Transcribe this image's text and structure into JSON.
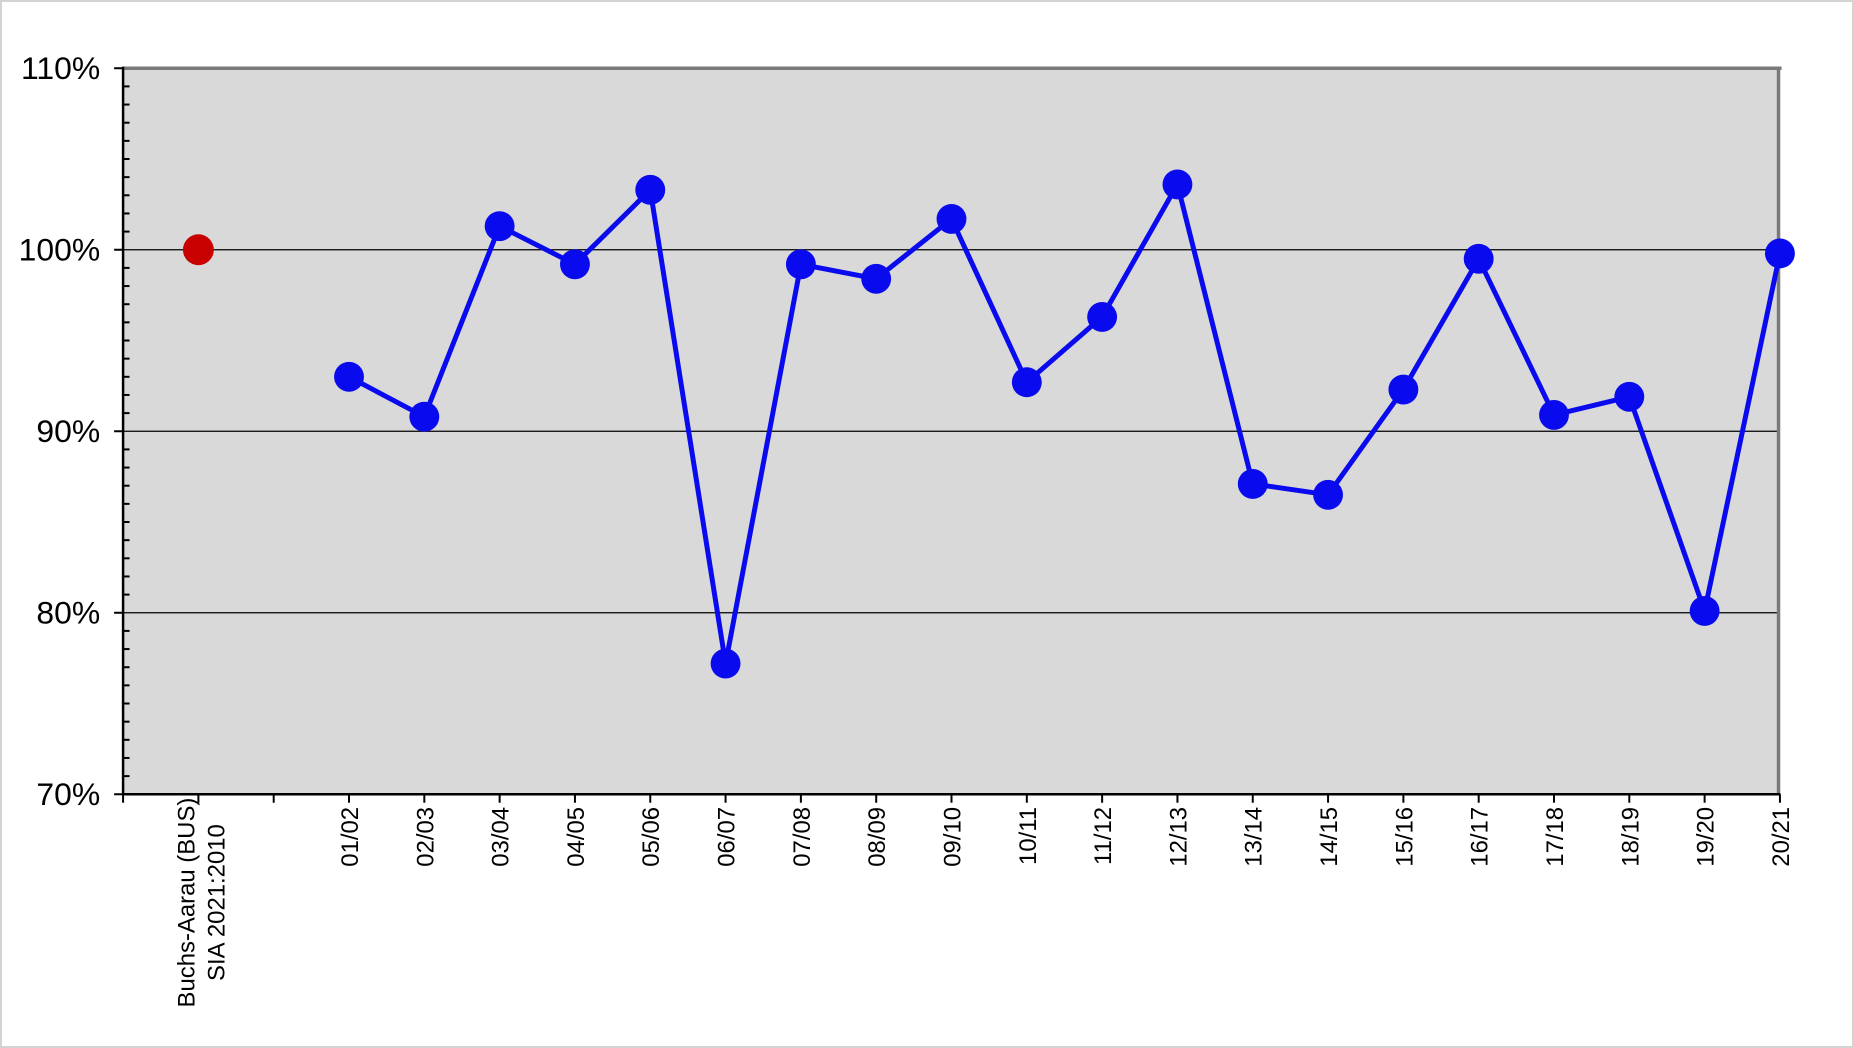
{
  "chart_data": {
    "type": "line",
    "title": "",
    "ylim": [
      70,
      110
    ],
    "grid": "horizontal-major",
    "plot_background": "#d9d9d9",
    "plot_border_color": "#7a7a7a",
    "gridline_color": "#000000",
    "axis_color": "#000000",
    "y_axis": {
      "min": 70,
      "max": 110,
      "minor_tick_step": 1,
      "ticks": [
        {
          "value": 110,
          "label": "110%"
        },
        {
          "value": 100,
          "label": "100%"
        },
        {
          "value": 90,
          "label": "90%"
        },
        {
          "value": 80,
          "label": "80%"
        },
        {
          "value": 70,
          "label": "70%"
        }
      ]
    },
    "x_axis": {
      "slot_count": 23,
      "reference_slot": 1,
      "series_start_slot": 3,
      "reference_label_lines": [
        "Buchs-Aarau (BUS)",
        "SIA 2021:2010"
      ]
    },
    "reference_point": {
      "label": "Buchs-Aarau (BUS) SIA 2021:2010",
      "value": 100.0,
      "color": "#c80000"
    },
    "series": {
      "color": "#0a0aee",
      "marker_radius": 15,
      "line_width": 5,
      "categories": [
        "01/02",
        "02/03",
        "03/04",
        "04/05",
        "05/06",
        "06/07",
        "07/08",
        "08/09",
        "09/10",
        "10/11",
        "11/12",
        "12/13",
        "13/14",
        "14/15",
        "15/16",
        "16/17",
        "17/18",
        "18/19",
        "19/20",
        "20/21"
      ],
      "values": [
        93.0,
        90.8,
        101.3,
        99.2,
        103.3,
        77.2,
        99.2,
        98.4,
        101.7,
        92.7,
        96.3,
        103.6,
        87.1,
        86.5,
        92.3,
        99.5,
        90.9,
        91.9,
        80.1,
        99.8
      ]
    }
  }
}
